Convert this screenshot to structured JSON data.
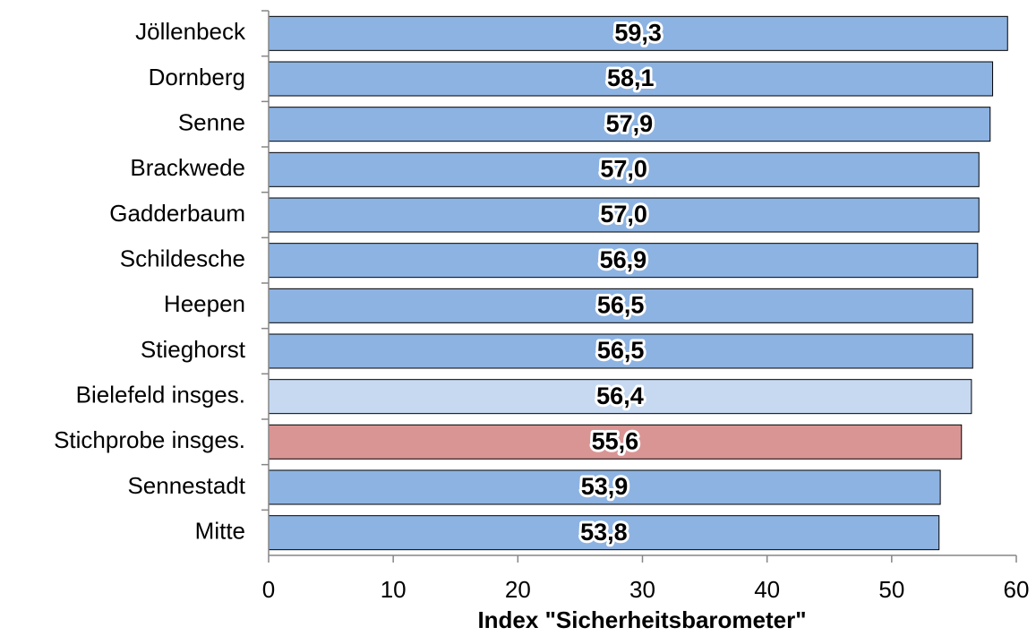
{
  "chart_data": {
    "type": "hbar",
    "xlabel": "Index \"Sicherheitsbarometer\"",
    "categories": [
      "Jöllenbeck",
      "Dornberg",
      "Senne",
      "Brackwede",
      "Gadderbaum",
      "Schildesche",
      "Heepen",
      "Stieghorst",
      "Bielefeld insges.",
      "Stichprobe insges.",
      "Sennestadt",
      "Mitte"
    ],
    "values": [
      59.3,
      58.1,
      57.9,
      57.0,
      57.0,
      56.9,
      56.5,
      56.5,
      56.4,
      55.6,
      53.9,
      53.8
    ],
    "value_labels": [
      "59,3",
      "58,1",
      "57,9",
      "57,0",
      "57,0",
      "56,9",
      "56,5",
      "56,5",
      "56,4",
      "55,6",
      "53,9",
      "53,8"
    ],
    "colors": [
      "#8db3e2",
      "#8db3e2",
      "#8db3e2",
      "#8db3e2",
      "#8db3e2",
      "#8db3e2",
      "#8db3e2",
      "#8db3e2",
      "#c6d9f1",
      "#d99594",
      "#8db3e2",
      "#8db3e2"
    ],
    "xlim": [
      0,
      60
    ],
    "xticks": [
      0,
      10,
      20,
      30,
      40,
      50,
      60
    ],
    "grid": false
  }
}
